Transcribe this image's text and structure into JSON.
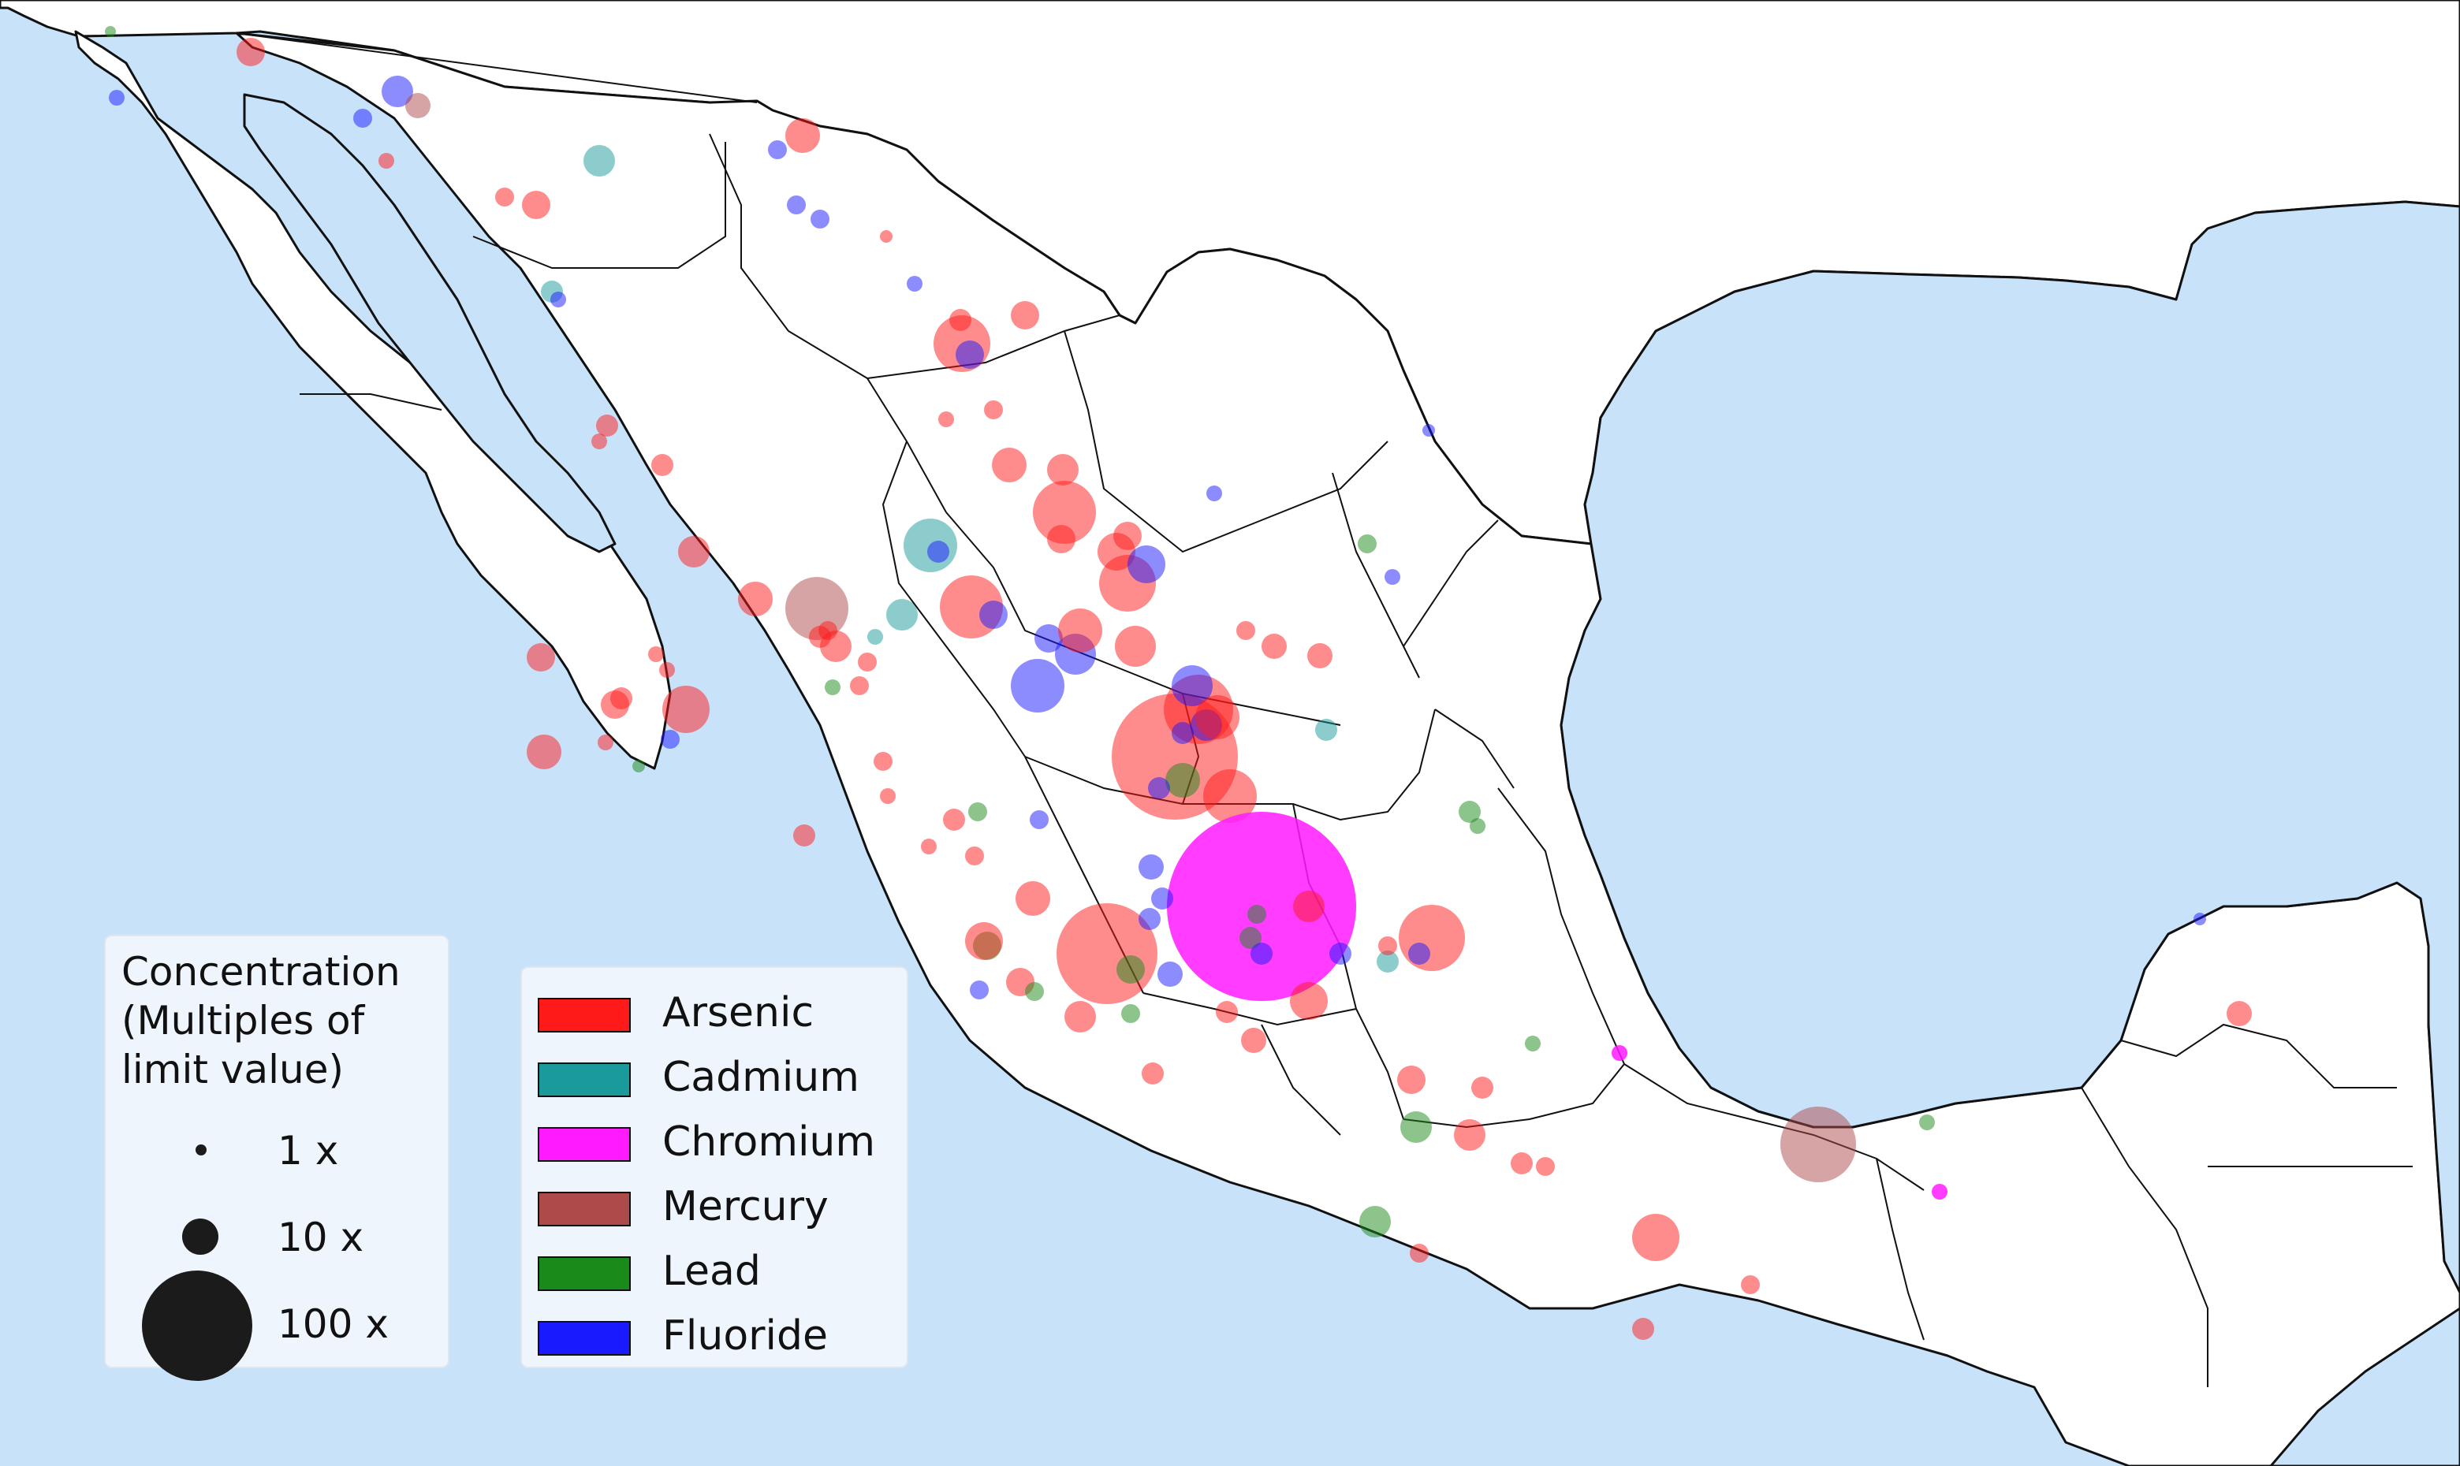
{
  "colors": {
    "sea": "#c8e2fa",
    "land": "#ffffff",
    "border": "#111111",
    "arsenic": "#ff1a1a",
    "cadmium": "#1a9a9a",
    "chromium": "#ff1aff",
    "mercury": "#ad4a4a",
    "lead": "#1a8a1a",
    "fluoride": "#1a1aff"
  },
  "size_legend": {
    "title": "Concentration\n(Multiples of\nlimit value)",
    "items": [
      {
        "label": "1 x",
        "multiple": 1
      },
      {
        "label": "10 x",
        "multiple": 10
      },
      {
        "label": "100 x",
        "multiple": 100
      }
    ]
  },
  "color_legend": {
    "items": [
      {
        "label": "Arsenic",
        "key": "arsenic"
      },
      {
        "label": "Cadmium",
        "key": "cadmium"
      },
      {
        "label": "Chromium",
        "key": "chromium"
      },
      {
        "label": "Mercury",
        "key": "mercury"
      },
      {
        "label": "Lead",
        "key": "lead"
      },
      {
        "label": "Fluoride",
        "key": "fluoride"
      }
    ]
  }
}
